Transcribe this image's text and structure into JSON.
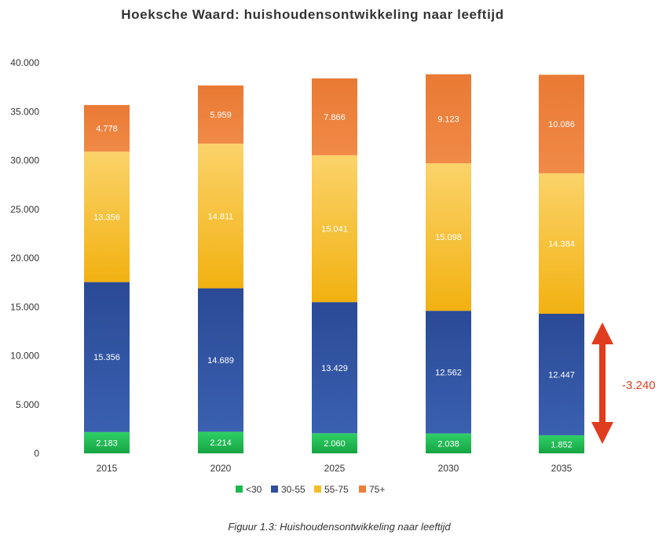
{
  "chart_data": {
    "type": "bar",
    "stacked": true,
    "title": "Hoeksche Waard: huishoudensontwikkeling naar leeftijd",
    "categories": [
      "2015",
      "2020",
      "2025",
      "2030",
      "2035"
    ],
    "series": [
      {
        "name": "<30",
        "color": "#1fb84f",
        "values": [
          2183,
          2214,
          2060,
          2038,
          1852
        ],
        "labels": [
          "2.183",
          "2.214",
          "2.060",
          "2.038",
          "1.852"
        ]
      },
      {
        "name": "30-55",
        "color": "#2e4f9a",
        "values": [
          15356,
          14689,
          13429,
          12562,
          12447
        ],
        "labels": [
          "15.356",
          "14.689",
          "13.429",
          "12.562",
          "12.447"
        ]
      },
      {
        "name": "55-75",
        "color": "#f5bd24",
        "values": [
          13356,
          14811,
          15041,
          15098,
          14384
        ],
        "labels": [
          "13.356",
          "14.811",
          "15.041",
          "15.098",
          "14.384"
        ]
      },
      {
        "name": "75+",
        "color": "#ec7f3a",
        "values": [
          4778,
          5959,
          7866,
          9123,
          10086
        ],
        "labels": [
          "4.778",
          "5.959",
          "7.866",
          "9.123",
          "10.086"
        ]
      }
    ],
    "ylim": [
      0,
      40000
    ],
    "yticks": [
      0,
      5000,
      10000,
      15000,
      20000,
      25000,
      30000,
      35000,
      40000
    ],
    "ytick_labels": [
      "0",
      "5.000",
      "10.000",
      "15.000",
      "20.000",
      "25.000",
      "30.000",
      "35.000",
      "40.000"
    ],
    "grid": false,
    "legend_position": "bottom",
    "annotation": {
      "text": "-3.240",
      "color": "#e03c1f"
    }
  },
  "caption": "Figuur 1.3: Huishoudensontwikkeling naar leeftijd"
}
